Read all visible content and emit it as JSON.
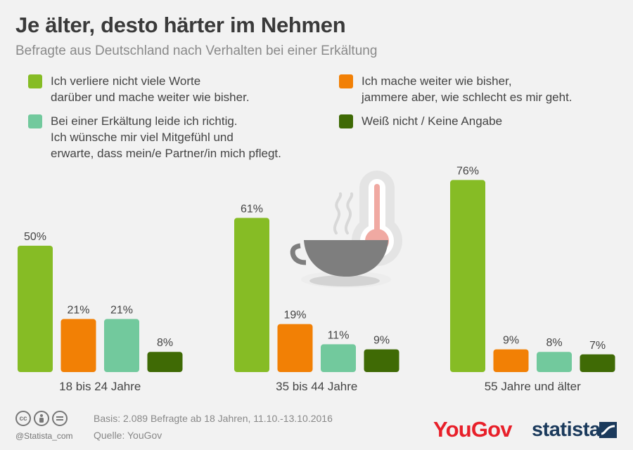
{
  "title": "Je älter, desto härter im Nehmen",
  "subtitle": "Befragte aus Deutschland nach Verhalten bei einer Erkältung",
  "colors": {
    "green": "#86bc25",
    "orange": "#f28005",
    "teal": "#72c99d",
    "darkgreen": "#3f6a05",
    "text": "#444444"
  },
  "chart_data": {
    "type": "bar",
    "categories": [
      "18 bis 24 Jahre",
      "35 bis 44 Jahre",
      "55 Jahre und älter"
    ],
    "series": [
      {
        "name": "Ich verliere nicht viele Worte darüber und mache weiter wie bisher.",
        "color": "#86bc25",
        "values": [
          50,
          61,
          76
        ]
      },
      {
        "name": "Ich mache weiter wie bisher, jammere aber, wie schlecht es mir geht.",
        "color": "#f28005",
        "values": [
          21,
          19,
          9
        ]
      },
      {
        "name": "Bei einer Erkältung leide ich richtig. Ich wünsche mir viel Mitgefühl und erwarte, dass mein/e Partner/in mich pflegt.",
        "color": "#72c99d",
        "values": [
          21,
          11,
          8
        ]
      },
      {
        "name": "Weiß nicht / Keine Angabe",
        "color": "#3f6a05",
        "values": [
          8,
          9,
          7
        ]
      }
    ],
    "value_suffix": "%",
    "ylim": [
      0,
      100
    ],
    "grid": false,
    "legend_position": "top"
  },
  "legend": [
    {
      "text": "Ich verliere nicht viele Worte\ndarüber und mache weiter wie bisher.",
      "color": "#86bc25"
    },
    {
      "text": "Ich mache weiter wie bisher,\njammere aber, wie schlecht es mir geht.",
      "color": "#f28005"
    },
    {
      "text": "Bei einer Erkältung leide ich richtig.\nIch wünsche mir viel Mitgefühl und\nerwarte, dass mein/e Partner/in mich pflegt.",
      "color": "#72c99d"
    },
    {
      "text": "Weiß nicht / Keine Angabe",
      "color": "#3f6a05"
    }
  ],
  "illustration": {
    "icons": [
      "coffee-cup-icon",
      "thermometer-icon"
    ]
  },
  "footer": {
    "basis": "Basis: 2.089 Befragte ab 18 Jahren, 11.10.-13.10.2016",
    "source": "Quelle: YouGov",
    "handle": "@Statista_com",
    "brand1": "YouGov",
    "brand2": "statista",
    "cc_icons": [
      "cc-icon",
      "by-icon",
      "nd-icon"
    ]
  }
}
